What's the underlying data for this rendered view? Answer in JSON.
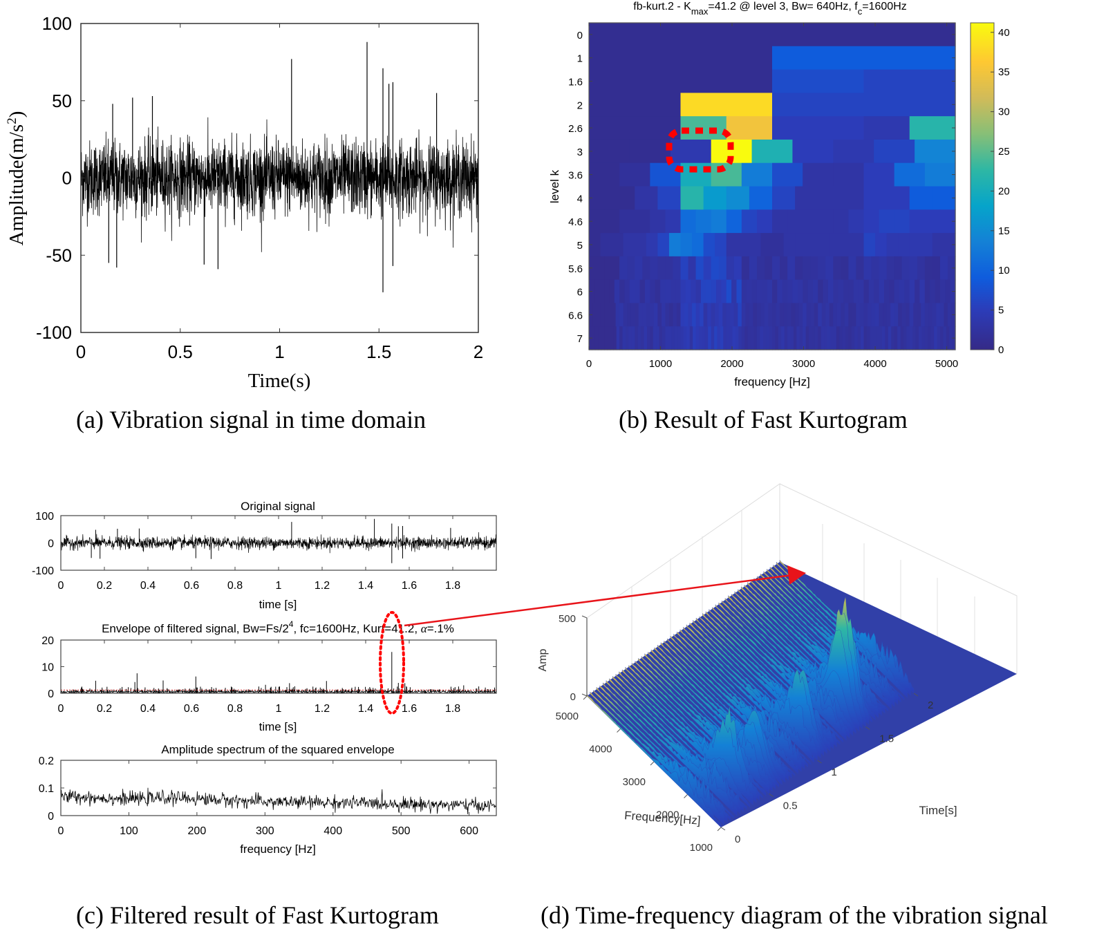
{
  "captions": {
    "a": "(a) Vibration signal in time domain",
    "b": "(b) Result of Fast Kurtogram",
    "c": "(c) Filtered result of Fast Kurtogram",
    "d": "(d) Time-frequency diagram of the vibration signal"
  },
  "chart_data": [
    {
      "id": "a",
      "type": "line",
      "title": "",
      "xlabel": "Time(s)",
      "ylabel": "Amplitude(m/s²)",
      "xlim": [
        0,
        2
      ],
      "ylim": [
        -100,
        100
      ],
      "xticks": [
        "0",
        "0.5",
        "1",
        "1.5",
        "2"
      ],
      "yticks": [
        "100",
        "50",
        "0",
        "-50",
        "-100"
      ],
      "description": "dense noisy vibration signal, bulk ±30, notable spikes",
      "spikes": [
        {
          "x": 1.06,
          "y": 77
        },
        {
          "x": 1.44,
          "y": 88
        },
        {
          "x": 1.52,
          "y": 71
        },
        {
          "x": 1.55,
          "y": 61
        },
        {
          "x": 1.57,
          "y": 62
        },
        {
          "x": 1.79,
          "y": 55
        },
        {
          "x": 0.36,
          "y": 53
        },
        {
          "x": 0.26,
          "y": 52
        },
        {
          "x": 0.16,
          "y": 48
        },
        {
          "x": 1.52,
          "y": -74
        },
        {
          "x": 0.69,
          "y": -59
        },
        {
          "x": 0.18,
          "y": -58
        },
        {
          "x": 0.14,
          "y": -55
        },
        {
          "x": 1.57,
          "y": -57
        },
        {
          "x": 0.62,
          "y": -56
        }
      ]
    },
    {
      "id": "b",
      "type": "heatmap",
      "title": "fb-kurt.2 - K",
      "title_sub": "max",
      "title_rest": "=41.2 @ level 3, Bw= 640Hz, f",
      "title_sub2": "c",
      "title_end": "=1600Hz",
      "xlabel": "frequency [Hz]",
      "ylabel": "level k",
      "xlim": [
        0,
        5120
      ],
      "xticks": [
        "0",
        "1000",
        "2000",
        "3000",
        "4000",
        "5000"
      ],
      "yticks": [
        "0",
        "1",
        "1.6",
        "2",
        "2.6",
        "3",
        "3.6",
        "4",
        "4.6",
        "5",
        "5.6",
        "6",
        "6.6",
        "7"
      ],
      "colorbar": {
        "ticks": [
          "0",
          "5",
          "10",
          "15",
          "20",
          "25",
          "30",
          "35",
          "40"
        ],
        "range": [
          0,
          41.2
        ]
      },
      "max": {
        "value": 41.2,
        "level": 3,
        "bw_hz": 640,
        "fc_hz": 1600
      },
      "rows": [
        {
          "level": "0",
          "cells": [
            1
          ]
        },
        {
          "level": "1",
          "cells": [
            1,
            9
          ]
        },
        {
          "level": "1.6",
          "cells": [
            1,
            1,
            7,
            6
          ]
        },
        {
          "level": "2",
          "cells": [
            1,
            38,
            6,
            6
          ]
        },
        {
          "level": "2.6",
          "cells": [
            1,
            1,
            24,
            35,
            5,
            5,
            4,
            22
          ]
        },
        {
          "level": "3",
          "cells": [
            1,
            1,
            4,
            41.2,
            21,
            5,
            4,
            6,
            14
          ]
        },
        {
          "level": "3.6",
          "cells": [
            1,
            2,
            8,
            20,
            24,
            13,
            7,
            3,
            3,
            5,
            11,
            13
          ]
        },
        {
          "level": "4",
          "cells": [
            1,
            1,
            3,
            6,
            22,
            17,
            15,
            10,
            6,
            3,
            3,
            3,
            5,
            5,
            9,
            9
          ]
        },
        {
          "level": "4.6",
          "cells": [
            1,
            1,
            2,
            2,
            3,
            4,
            11,
            12,
            13,
            10,
            6,
            5,
            3,
            3,
            3,
            3,
            3,
            4,
            5,
            6,
            6,
            5,
            5,
            5
          ]
        },
        {
          "level": "5",
          "cells": [
            1,
            2,
            2,
            3,
            3,
            4,
            6,
            13,
            12,
            11,
            7,
            6,
            3,
            3,
            3,
            2,
            2,
            3,
            3,
            3,
            3,
            3,
            3,
            3,
            6,
            5,
            4,
            4,
            4,
            4,
            3,
            3
          ]
        }
      ]
    },
    {
      "id": "c1",
      "type": "line",
      "title": "Original signal",
      "xlabel": "time [s]",
      "xlim": [
        0,
        2
      ],
      "ylim": [
        -100,
        100
      ],
      "xticks": [
        "0",
        "0.2",
        "0.4",
        "0.6",
        "0.8",
        "1",
        "1.2",
        "1.4",
        "1.6",
        "1.8"
      ],
      "yticks": [
        "100",
        "0",
        "-100"
      ]
    },
    {
      "id": "c2",
      "type": "line",
      "title": "Envelope of filtered signal, Bw=Fs/2",
      "title_sup": "4",
      "title_rest": ", fc=1600Hz, Kurt=41.2, ",
      "title_alpha": "α",
      "title_end": "=.1%",
      "xlabel": "time [s]",
      "xlim": [
        0,
        2
      ],
      "ylim": [
        0,
        20
      ],
      "xticks": [
        "0",
        "0.2",
        "0.4",
        "0.6",
        "0.8",
        "1",
        "1.2",
        "1.4",
        "1.6",
        "1.8"
      ],
      "yticks": [
        "20",
        "10",
        "0"
      ],
      "threshold": 1.2,
      "spikes": [
        {
          "x": 1.52,
          "y": 15.5
        },
        {
          "x": 0.35,
          "y": 7.5
        },
        {
          "x": 0.62,
          "y": 6.3
        },
        {
          "x": 0.47,
          "y": 4.8
        },
        {
          "x": 1.22,
          "y": 4.6
        },
        {
          "x": 0.16,
          "y": 4.7
        },
        {
          "x": 0.34,
          "y": 4.2
        },
        {
          "x": 1.05,
          "y": 3.8
        },
        {
          "x": 0.94,
          "y": 3.2
        },
        {
          "x": 1.55,
          "y": 3.9
        },
        {
          "x": 1.58,
          "y": 3.8
        },
        {
          "x": 1.85,
          "y": 3.0
        }
      ]
    },
    {
      "id": "c3",
      "type": "line",
      "title": "Amplitude spectrum of the squared envelope",
      "xlabel": "frequency [Hz]",
      "xlim": [
        0,
        640
      ],
      "ylim": [
        0,
        0.2
      ],
      "xticks": [
        "0",
        "100",
        "200",
        "300",
        "400",
        "500",
        "600"
      ],
      "yticks": [
        "0.2",
        "0.1",
        "0"
      ],
      "trend": [
        {
          "x": 0,
          "y": 0.07
        },
        {
          "x": 100,
          "y": 0.06
        },
        {
          "x": 160,
          "y": 0.065
        },
        {
          "x": 300,
          "y": 0.05
        },
        {
          "x": 450,
          "y": 0.045
        },
        {
          "x": 640,
          "y": 0.035
        }
      ]
    },
    {
      "id": "d",
      "type": "surface",
      "title": "",
      "xlabel": "Frequency[Hz]",
      "ylabel": "Time[s]",
      "zlabel": "Amp",
      "freq_ticks": [
        "5000",
        "4000",
        "3000",
        "2000",
        "1000"
      ],
      "time_ticks": [
        "0",
        "0.5",
        "1",
        "1.5",
        "2"
      ],
      "amp_ticks": [
        "0",
        "500"
      ],
      "peaks": [
        {
          "time": 1.52,
          "freq": 1600,
          "amp": 520
        },
        {
          "time": 1.44,
          "freq": 1600,
          "amp": 480
        },
        {
          "time": 1.06,
          "freq": 1600,
          "amp": 400
        },
        {
          "time": 0.6,
          "freq": 1700,
          "amp": 330
        },
        {
          "time": 0.35,
          "freq": 1800,
          "amp": 300
        }
      ]
    }
  ],
  "annotations": {
    "arrow_color": "#e8141a",
    "highlight_color": "#ff0000"
  },
  "colors": {
    "parula": [
      "#352a87",
      "#0f5cdd",
      "#1481d6",
      "#06a4ca",
      "#2eb7a4",
      "#87bf77",
      "#d1bb59",
      "#fec832",
      "#f9fb0e"
    ]
  }
}
